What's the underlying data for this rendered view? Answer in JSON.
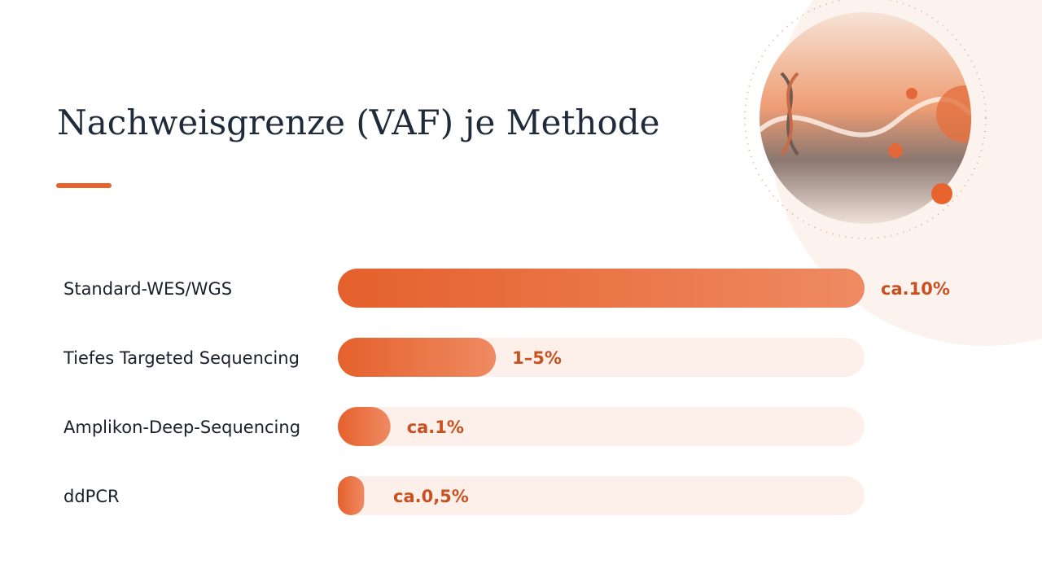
{
  "chart_data": {
    "type": "bar",
    "orientation": "horizontal",
    "title": "Nachweisgrenze (VAF) je Methode",
    "categories": [
      "Standard-WES/WGS",
      "Tiefes Targeted Sequencing",
      "Amplikon-Deep-Sequencing",
      "ddPCR"
    ],
    "values": [
      10,
      3,
      1,
      0.5
    ],
    "value_labels": [
      "ca.10%",
      "1–5%",
      "ca.1%",
      "ca.0,5%"
    ],
    "xlim": [
      0,
      10
    ],
    "color": "#e8642f"
  }
}
